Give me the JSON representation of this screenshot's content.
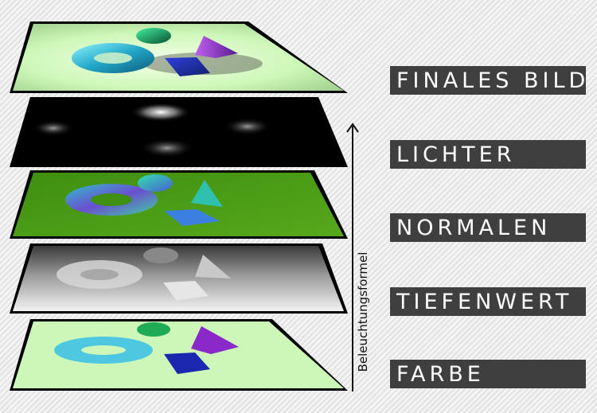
{
  "layers": [
    {
      "id": "final",
      "label": "FINALES BILD"
    },
    {
      "id": "lights",
      "label": "LICHTER"
    },
    {
      "id": "normals",
      "label": "NORMALEN"
    },
    {
      "id": "depth",
      "label": "TIEFENWERT"
    },
    {
      "id": "color",
      "label": "FARBE"
    }
  ],
  "axis": {
    "label": "Beleuchtungsformel"
  },
  "colors": {
    "label_bg": "#3f3f3f",
    "label_text": "#ffffff",
    "plane_floor_color": "#cdf7b8",
    "plane_floor_normals": "#4a9a10",
    "plane_edge": "#000000"
  }
}
